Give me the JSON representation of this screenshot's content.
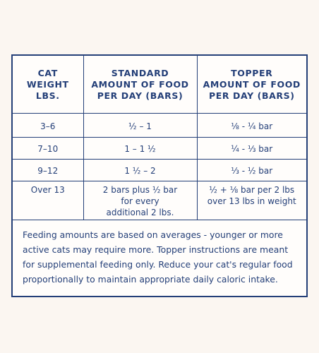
{
  "table": {
    "headers": [
      "CAT\nWEIGHT\nLBS.",
      "STANDARD\nAMOUNT OF FOOD\nPER DAY (BARS)",
      "TOPPER\nAMOUNT OF FOOD\nPER DAY (BARS)"
    ],
    "rows": [
      [
        "3–6",
        "½ – 1",
        "⅛ - ¼  bar"
      ],
      [
        "7–10",
        "1 – 1 ½",
        "¼ - ⅓  bar"
      ],
      [
        "9–12",
        "1 ½ – 2",
        "⅓ - ½  bar"
      ],
      [
        "Over 13",
        "2 bars plus ½ bar\nfor every\nadditional 2 lbs.",
        "½ + ⅛ bar per 2 lbs\nover 13 lbs in weight"
      ]
    ],
    "note": "Feeding amounts are based on averages - younger or more active cats may require more. Topper instructions are meant for supplemental feeding only. Reduce your cat's regular food proportionally to maintain appropriate daily caloric intake."
  }
}
